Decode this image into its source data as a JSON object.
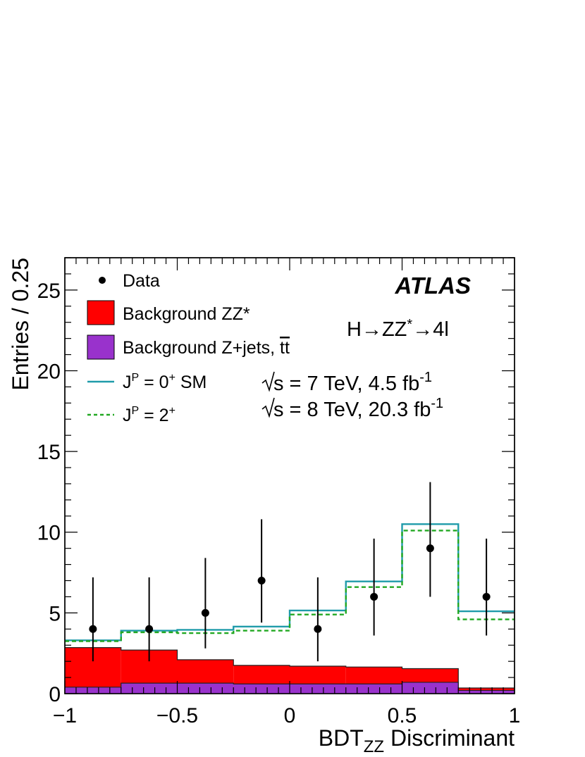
{
  "chart_data": {
    "type": "histogram",
    "xlabel": {
      "main": "BDT",
      "sub": "ZZ",
      "rest": " Discriminant"
    },
    "ylabel": "Entries / 0.25",
    "xlim": [
      -1,
      1
    ],
    "ylim": [
      0,
      27
    ],
    "x_ticks": [
      {
        "value": -1,
        "label": "−1"
      },
      {
        "value": -0.5,
        "label": "−0.5"
      },
      {
        "value": 0,
        "label": "0"
      },
      {
        "value": 0.5,
        "label": "0.5"
      },
      {
        "value": 1,
        "label": "1"
      }
    ],
    "y_ticks": [
      {
        "value": 0,
        "label": "0"
      },
      {
        "value": 5,
        "label": "5"
      },
      {
        "value": 10,
        "label": "10"
      },
      {
        "value": 15,
        "label": "15"
      },
      {
        "value": 20,
        "label": "20"
      },
      {
        "value": 25,
        "label": "25"
      }
    ],
    "bin_edges": [
      -1,
      -0.75,
      -0.5,
      -0.25,
      0,
      0.25,
      0.5,
      0.75,
      1
    ],
    "stack": [
      {
        "name": "Background Z+jets, tt̄",
        "color": "#9932CC",
        "values": [
          0.4,
          0.65,
          0.65,
          0.6,
          0.6,
          0.6,
          0.7,
          0.2
        ]
      },
      {
        "name": "Background ZZ*",
        "color": "#FF0000",
        "values": [
          2.45,
          2.05,
          1.45,
          1.15,
          1.1,
          1.05,
          0.85,
          0.15
        ]
      }
    ],
    "lines": [
      {
        "name": "J^P = 0^+ SM",
        "color": "#1F9BAA",
        "style": "solid",
        "values": [
          3.3,
          3.9,
          3.95,
          4.15,
          5.15,
          6.95,
          10.5,
          5.1
        ]
      },
      {
        "name": "J^P = 2^+",
        "color": "#22A822",
        "style": "dashed",
        "values": [
          3.25,
          3.8,
          3.75,
          3.9,
          4.9,
          6.6,
          10.1,
          4.6
        ]
      }
    ],
    "data_points": {
      "name": "Data",
      "x": [
        -0.875,
        -0.625,
        -0.375,
        -0.125,
        0.125,
        0.375,
        0.625,
        0.875
      ],
      "y": [
        4,
        4,
        5,
        7,
        4,
        6,
        9,
        6
      ],
      "err_low": [
        2.0,
        2.0,
        2.2,
        2.6,
        2.0,
        2.4,
        3.0,
        2.4
      ],
      "err_high": [
        3.2,
        3.2,
        3.4,
        3.8,
        3.2,
        3.6,
        4.1,
        3.6
      ]
    },
    "legend": {
      "placement": "top-left",
      "data": "Data",
      "zz": "Background ZZ*",
      "zjets_main": "Background Z+jets, ",
      "zjets_tt": "tt",
      "sm": {
        "pre": "J",
        "sup": "P",
        "mid": " = 0",
        "sup2": "+",
        "post": " SM"
      },
      "spin2": {
        "pre": "J",
        "sup": "P",
        "mid": " = 2",
        "sup2": "+"
      }
    },
    "annotations": {
      "experiment": "ATLAS",
      "process": {
        "pre": "H",
        "arrow1": "→",
        "mid": "ZZ",
        "star": "*",
        "arrow2": "→",
        "post": "4l"
      },
      "lumi7": {
        "root": "s = 7 TeV, 4.5 fb",
        "sup": "-1"
      },
      "lumi8": {
        "root": "s = 8 TeV, 20.3 fb",
        "sup": "-1"
      }
    }
  }
}
